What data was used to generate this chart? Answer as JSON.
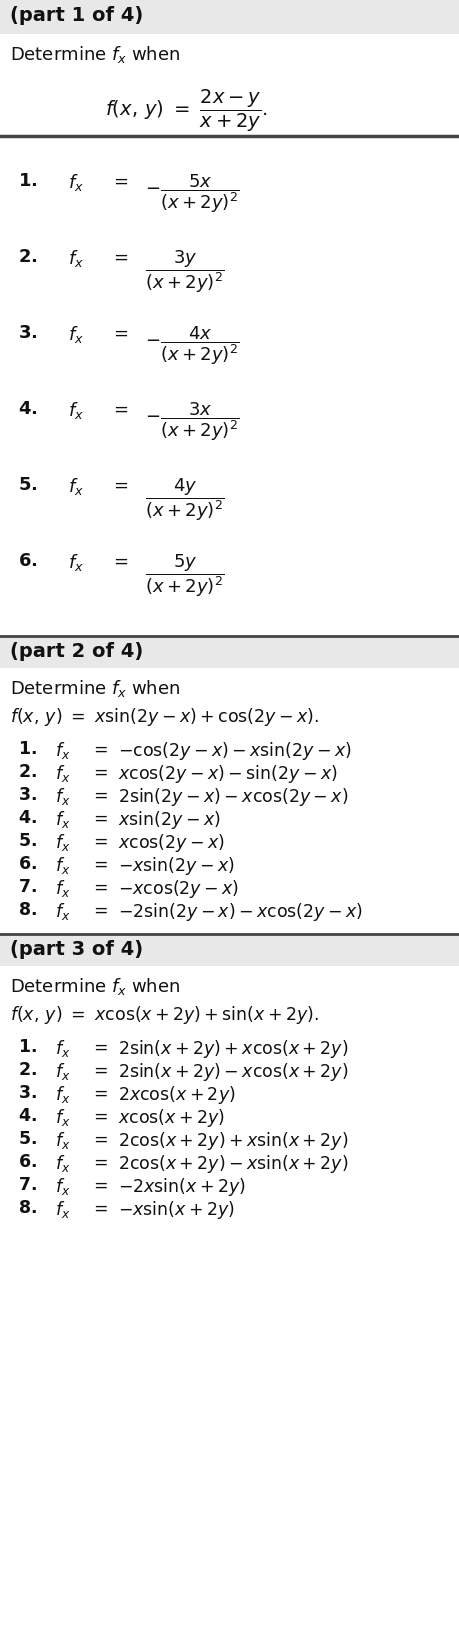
{
  "bg_color": "#ffffff",
  "part1": {
    "header": "(part 1 of 4)",
    "intro": "Determine $f_x$ when",
    "formula": "$f(x,\\, y) \\ = \\ \\dfrac{2x - y}{x + 2y}.$",
    "items": [
      [
        "$\\mathbf{1.}$",
        "$f_x$",
        "$=$",
        "$-\\dfrac{5x}{(x + 2y)^2}$"
      ],
      [
        "$\\mathbf{2.}$",
        "$f_x$",
        "$=$",
        "$\\dfrac{3y}{(x + 2y)^2}$"
      ],
      [
        "$\\mathbf{3.}$",
        "$f_x$",
        "$=$",
        "$-\\dfrac{4x}{(x + 2y)^2}$"
      ],
      [
        "$\\mathbf{4.}$",
        "$f_x$",
        "$=$",
        "$-\\dfrac{3x}{(x + 2y)^2}$"
      ],
      [
        "$\\mathbf{5.}$",
        "$f_x$",
        "$=$",
        "$\\dfrac{4y}{(x + 2y)^2}$"
      ],
      [
        "$\\mathbf{6.}$",
        "$f_x$",
        "$=$",
        "$\\dfrac{5y}{(x + 2y)^2}$"
      ]
    ]
  },
  "part2": {
    "header": "(part 2 of 4)",
    "intro": "Determine $f_x$ when",
    "formula": "$f(x,\\, y) \\ = \\ x\\sin(2y - x) + \\cos(2y - x).$",
    "items": [
      [
        "$\\mathbf{1.}$",
        "$f_x$",
        "$=$",
        "$-\\cos(2y - x) - x\\sin(2y - x)$"
      ],
      [
        "$\\mathbf{2.}$",
        "$f_x$",
        "$=$",
        "$x\\cos(2y - x) - \\sin(2y - x)$"
      ],
      [
        "$\\mathbf{3.}$",
        "$f_x$",
        "$=$",
        "$2\\sin(2y - x) - x\\cos(2y - x)$"
      ],
      [
        "$\\mathbf{4.}$",
        "$f_x$",
        "$=$",
        "$x\\sin(2y - x)$"
      ],
      [
        "$\\mathbf{5.}$",
        "$f_x$",
        "$=$",
        "$x\\cos(2y - x)$"
      ],
      [
        "$\\mathbf{6.}$",
        "$f_x$",
        "$=$",
        "$-x\\sin(2y - x)$"
      ],
      [
        "$\\mathbf{7.}$",
        "$f_x$",
        "$=$",
        "$-x\\cos(2y - x)$"
      ],
      [
        "$\\mathbf{8.}$",
        "$f_x$",
        "$=$",
        "$-2\\sin(2y - x) - x\\cos(2y - x)$"
      ]
    ]
  },
  "part3": {
    "header": "(part 3 of 4)",
    "intro": "Determine $f_x$ when",
    "formula": "$f(x,\\, y) \\ = \\ x\\cos(x + 2y) + \\sin(x + 2y).$",
    "items": [
      [
        "$\\mathbf{1.}$",
        "$f_x$",
        "$=$",
        "$2\\sin(x + 2y) + x\\cos(x + 2y)$"
      ],
      [
        "$\\mathbf{2.}$",
        "$f_x$",
        "$=$",
        "$2\\sin(x + 2y) - x\\cos(x + 2y)$"
      ],
      [
        "$\\mathbf{3.}$",
        "$f_x$",
        "$=$",
        "$2x\\cos(x + 2y)$"
      ],
      [
        "$\\mathbf{4.}$",
        "$f_x$",
        "$=$",
        "$x\\cos(x + 2y)$"
      ],
      [
        "$\\mathbf{5.}$",
        "$f_x$",
        "$=$",
        "$2\\cos(x + 2y) + x\\sin(x + 2y)$"
      ],
      [
        "$\\mathbf{6.}$",
        "$f_x$",
        "$=$",
        "$2\\cos(x + 2y) - x\\sin(x + 2y)$"
      ],
      [
        "$\\mathbf{7.}$",
        "$f_x$",
        "$=$",
        "$-2x\\sin(x + 2y)$"
      ],
      [
        "$\\mathbf{8.}$",
        "$f_x$",
        "$=$",
        "$-x\\sin(x + 2y)$"
      ]
    ]
  },
  "header_color": "#e8e8e8",
  "sep_color": "#444444",
  "text_color": "#111111"
}
